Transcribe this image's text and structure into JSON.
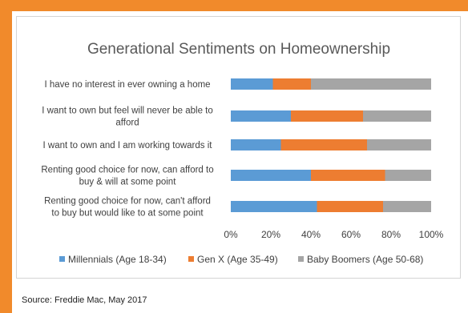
{
  "chart_data": {
    "type": "bar",
    "orientation": "horizontal",
    "stacked": true,
    "title": "Generational Sentiments on Homeownership",
    "categories": [
      "I have no interest in ever owning a home",
      "I want to own but feel will never be able to afford",
      "I want to own and I am working towards it",
      "Renting good choice for now, can afford to buy & will at some point",
      "Renting good choice for now, can't afford to buy but would like to at some point"
    ],
    "category_lines": [
      [
        "I have no interest in ever owning a home"
      ],
      [
        "I want to own but feel will never be able to",
        "afford"
      ],
      [
        "I want to own and I am working towards it"
      ],
      [
        "Renting good choice for now, can afford to",
        "buy & will at some point"
      ],
      [
        "Renting good choice for now, can't afford",
        "to buy but would like to at some point"
      ]
    ],
    "series": [
      {
        "name": "Millennials (Age 18-34)",
        "color": "#5b9bd5",
        "values": [
          21,
          30,
          25,
          40,
          43
        ]
      },
      {
        "name": "Gen X (Age 35-49)",
        "color": "#ed7d31",
        "values": [
          19,
          36,
          43,
          37,
          33
        ]
      },
      {
        "name": "Baby Boomers (Age 50-68)",
        "color": "#a5a5a5",
        "values": [
          60,
          34,
          32,
          23,
          24
        ]
      }
    ],
    "xlim": [
      0,
      100
    ],
    "xticks": [
      "0%",
      "20%",
      "40%",
      "60%",
      "80%",
      "100%"
    ],
    "grid": false,
    "legend_position": "bottom"
  },
  "source": "Source: Freddie Mac, May 2017"
}
